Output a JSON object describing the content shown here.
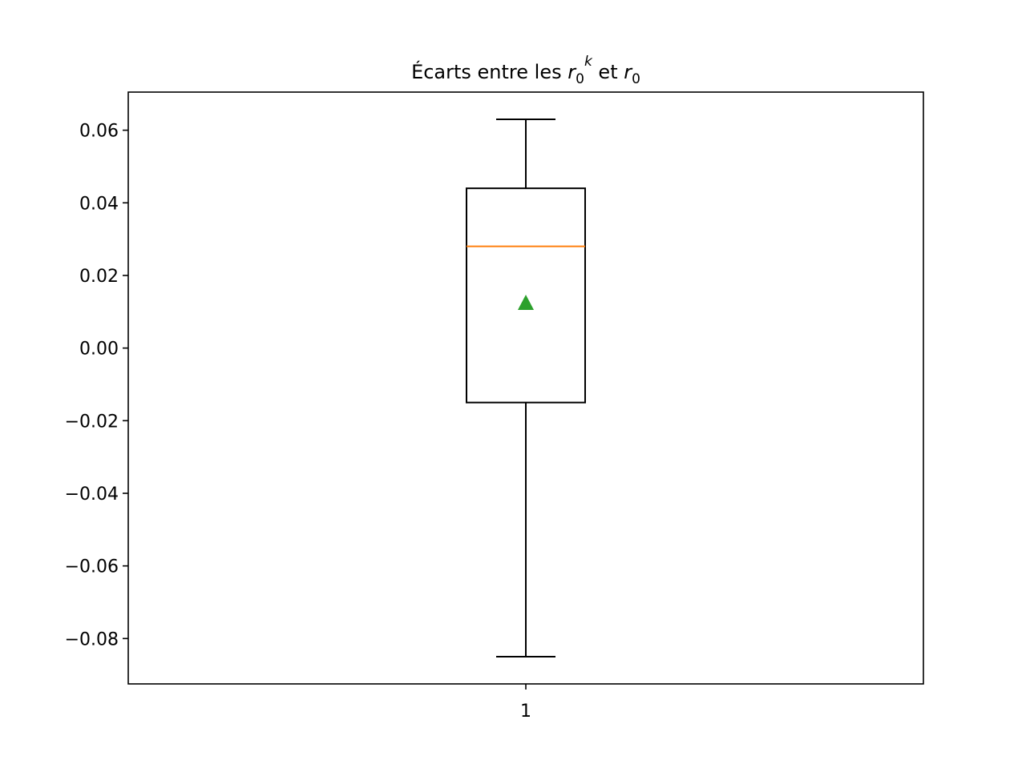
{
  "chart_data": {
    "type": "box",
    "title": {
      "prefix": "Écarts entre les ",
      "var1": {
        "base": "r",
        "sub": "0",
        "sup": "k"
      },
      "middle": " et ",
      "var2": {
        "base": "r",
        "sub": "0"
      }
    },
    "xlabel": "",
    "ylabel": "",
    "categories": [
      "1"
    ],
    "ylim": [
      -0.0925,
      0.0705
    ],
    "yticks": [
      -0.08,
      -0.06,
      -0.04,
      -0.02,
      0.0,
      0.02,
      0.04,
      0.06
    ],
    "ytick_labels": [
      "−0.08",
      "−0.06",
      "−0.04",
      "−0.02",
      "0.00",
      "0.02",
      "0.04",
      "0.06"
    ],
    "grid": false,
    "legend": "none",
    "boxes": [
      {
        "label": "1",
        "whisker_low": -0.085,
        "q1": -0.015,
        "median": 0.028,
        "q3": 0.044,
        "whisker_high": 0.063,
        "mean": 0.0125
      }
    ],
    "colors": {
      "box": "#000000",
      "median": "#ff7f0e",
      "mean": "#2ca02c",
      "axes": "#000000"
    },
    "mean_marker": "triangle-up"
  }
}
